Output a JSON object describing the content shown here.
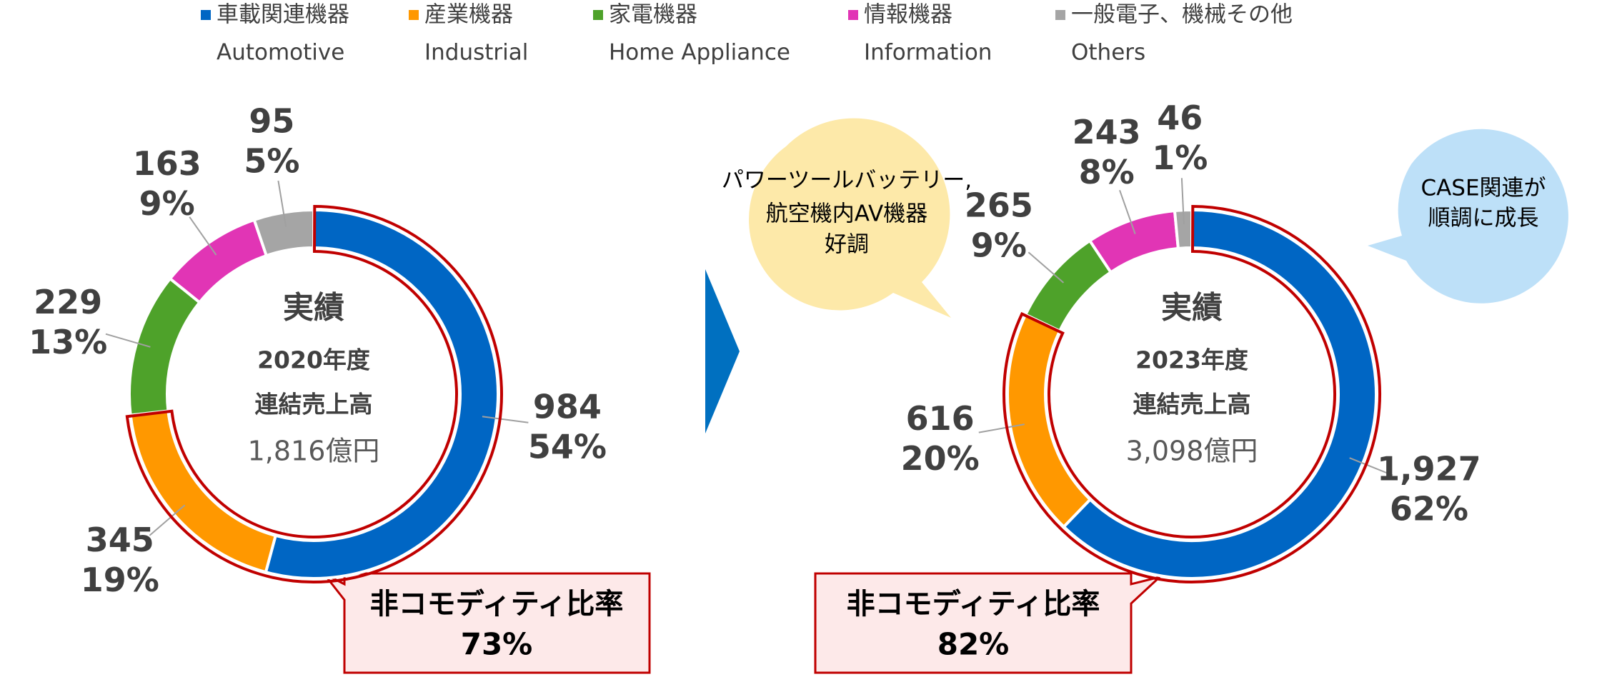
{
  "legend": {
    "names": [
      "車載関連機器",
      "産業機器",
      "家電機器",
      "情報機器",
      "一般電子、機械その他"
    ],
    "names_en": [
      "Automotive",
      "Industrial",
      "Home Appliance",
      "Information",
      "Others"
    ]
  },
  "chart_data": [
    {
      "type": "pie",
      "values": [
        984,
        345,
        229,
        163,
        95
      ],
      "shares": [
        54,
        19,
        13,
        9,
        5
      ],
      "share_labels": [
        "54%",
        "19%",
        "13%",
        "9%",
        "5%"
      ],
      "colors": [
        "#0066c4",
        "#ff9800",
        "#4ea22a",
        "#e135b5",
        "#a5a5a5"
      ],
      "center": [
        "実績",
        "2020年度",
        "連結売上高",
        "1,816億円"
      ],
      "callout": {
        "title": "非コモディティ比率",
        "value": "73%"
      }
    },
    {
      "type": "pie",
      "values": [
        1927,
        616,
        265,
        243,
        46
      ],
      "value_labels": [
        "1,927",
        "616",
        "265",
        "243",
        "46"
      ],
      "shares": [
        62,
        20,
        9,
        8,
        1
      ],
      "share_labels": [
        "62%",
        "20%",
        "9%",
        "8%",
        "1%"
      ],
      "colors": [
        "#0066c4",
        "#ff9800",
        "#4ea22a",
        "#e135b5",
        "#a5a5a5"
      ],
      "center": [
        "実績",
        "2023年度",
        "連結売上高",
        "3,098億円"
      ],
      "callout": {
        "title": "非コモディティ比率",
        "value": "82%"
      }
    }
  ],
  "notes": [
    [
      "パワーツールバッテリー,",
      "航空機内AV機器",
      "好調"
    ],
    [
      "CASE関連が",
      "順調に成長"
    ]
  ]
}
